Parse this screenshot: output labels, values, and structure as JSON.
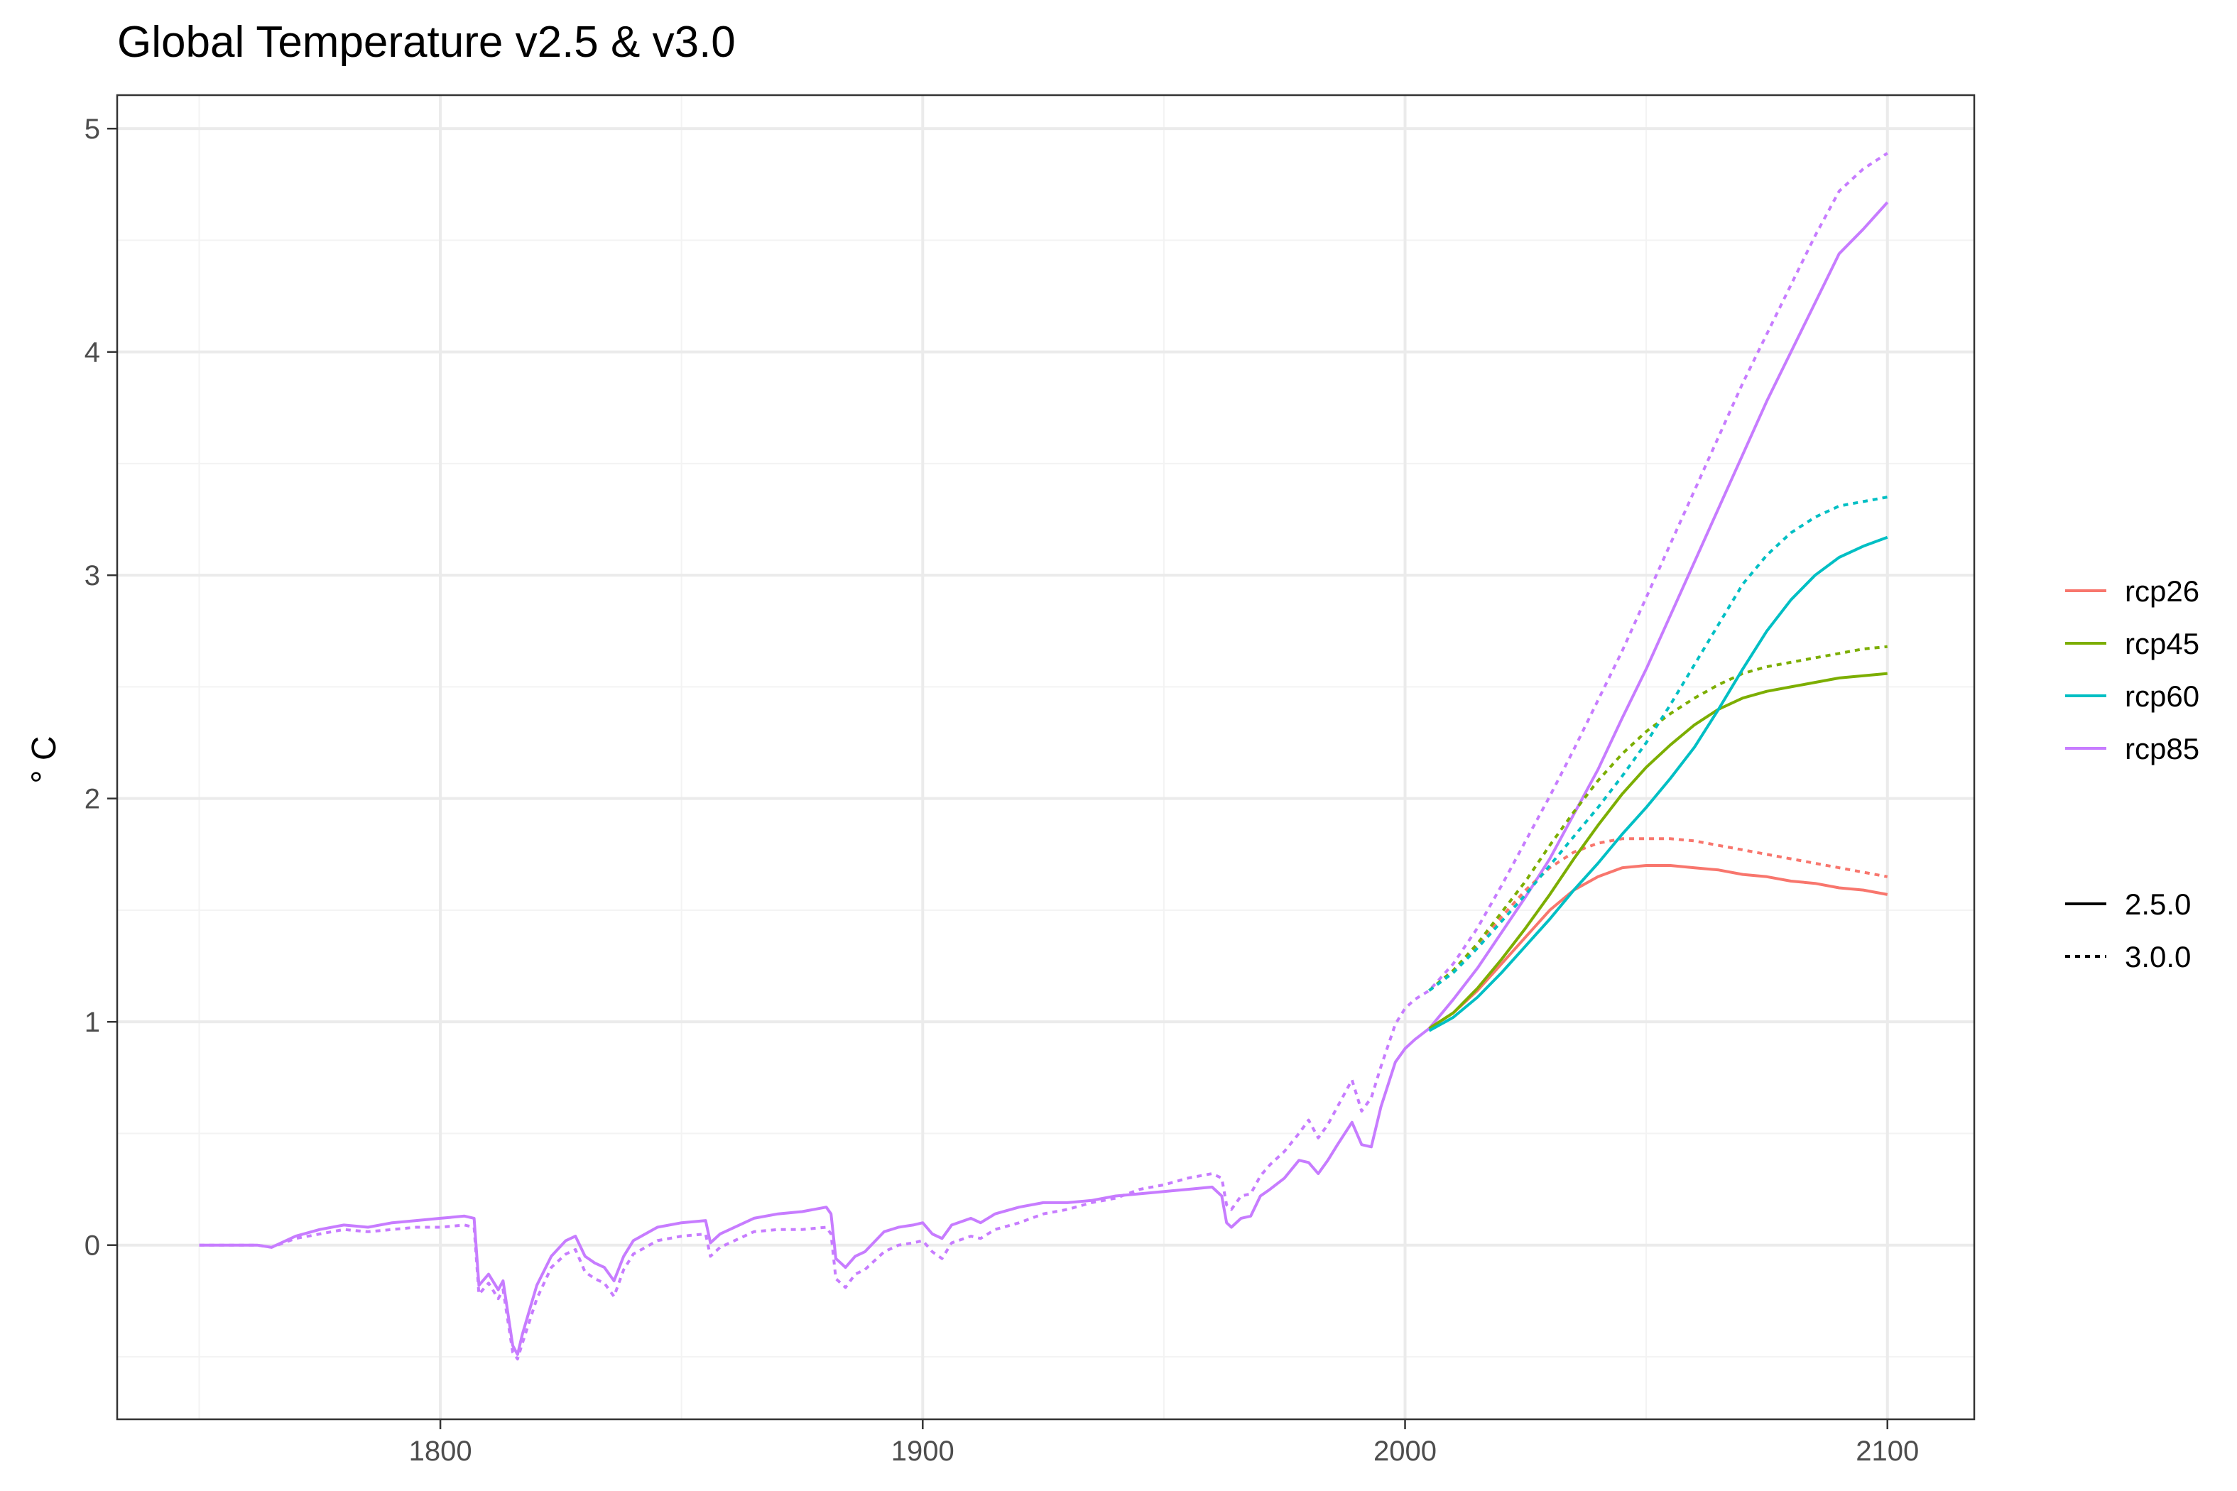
{
  "chart_data": {
    "type": "line",
    "title": "Global Temperature v2.5 & v3.0",
    "xlabel": "",
    "ylabel": "° C",
    "xlim": [
      1733,
      2118
    ],
    "ylim": [
      -0.78,
      5.15
    ],
    "x_ticks": [
      1800,
      1900,
      2000,
      2100
    ],
    "x_tick_labels": [
      "1800",
      "1900",
      "2000",
      "2100"
    ],
    "y_ticks": [
      0,
      1,
      2,
      3,
      4,
      5
    ],
    "y_tick_labels": [
      "0",
      "1",
      "2",
      "3",
      "4",
      "5"
    ],
    "grid": true,
    "legend_position": "right",
    "colors": {
      "rcp26": "#F8766D",
      "rcp45": "#7CAE00",
      "rcp60": "#00BFC4",
      "rcp85": "#C77CFF",
      "panel_border": "#333333",
      "grid_major": "#ebebeb",
      "grid_minor": "#f3f3f3"
    },
    "legend": {
      "scenarios": [
        "rcp26",
        "rcp45",
        "rcp60",
        "rcp85"
      ],
      "versions": [
        {
          "label": "2.5.0",
          "dash": "solid"
        },
        {
          "label": "3.0.0",
          "dash": "dotted"
        }
      ]
    },
    "series": [
      {
        "scenario": "rcp85",
        "version": "2.5.0",
        "x": [
          1750,
          1762,
          1765,
          1770,
          1775,
          1780,
          1785,
          1790,
          1795,
          1800,
          1805,
          1807,
          1808,
          1810,
          1812,
          1813,
          1815,
          1816,
          1817,
          1820,
          1823,
          1826,
          1828,
          1830,
          1832,
          1834,
          1836,
          1838,
          1840,
          1845,
          1850,
          1855,
          1856,
          1858,
          1860,
          1865,
          1870,
          1875,
          1880,
          1881,
          1882,
          1883,
          1884,
          1886,
          1888,
          1892,
          1895,
          1898,
          1900,
          1902,
          1904,
          1906,
          1910,
          1912,
          1915,
          1920,
          1925,
          1930,
          1935,
          1940,
          1945,
          1950,
          1955,
          1960,
          1962,
          1963,
          1964,
          1966,
          1968,
          1970,
          1972,
          1975,
          1978,
          1980,
          1982,
          1984,
          1986,
          1989,
          1991,
          1993,
          1995,
          1998,
          2000,
          2002,
          2005,
          2010,
          2015,
          2020,
          2025,
          2030,
          2035,
          2040,
          2045,
          2050,
          2055,
          2060,
          2065,
          2070,
          2075,
          2080,
          2085,
          2090,
          2095,
          2100
        ],
        "y": [
          0,
          0,
          -0.01,
          0.04,
          0.07,
          0.09,
          0.08,
          0.1,
          0.11,
          0.12,
          0.13,
          0.12,
          -0.18,
          -0.13,
          -0.2,
          -0.16,
          -0.45,
          -0.49,
          -0.4,
          -0.18,
          -0.05,
          0.02,
          0.04,
          -0.05,
          -0.08,
          -0.1,
          -0.16,
          -0.05,
          0.02,
          0.08,
          0.1,
          0.11,
          0.01,
          0.05,
          0.07,
          0.12,
          0.14,
          0.15,
          0.17,
          0.14,
          -0.06,
          -0.08,
          -0.1,
          -0.05,
          -0.03,
          0.06,
          0.08,
          0.09,
          0.1,
          0.05,
          0.03,
          0.09,
          0.12,
          0.1,
          0.14,
          0.17,
          0.19,
          0.19,
          0.2,
          0.22,
          0.23,
          0.24,
          0.25,
          0.26,
          0.22,
          0.1,
          0.08,
          0.12,
          0.13,
          0.22,
          0.25,
          0.3,
          0.38,
          0.37,
          0.32,
          0.38,
          0.45,
          0.55,
          0.45,
          0.44,
          0.62,
          0.82,
          0.88,
          0.92,
          0.97,
          1.1,
          1.24,
          1.4,
          1.56,
          1.73,
          1.93,
          2.13,
          2.36,
          2.58,
          2.82,
          3.06,
          3.3,
          3.54,
          3.78,
          4.0,
          4.22,
          4.44,
          4.55,
          4.67
        ]
      },
      {
        "scenario": "rcp85",
        "version": "3.0.0",
        "x": [
          1750,
          1762,
          1765,
          1770,
          1775,
          1780,
          1785,
          1790,
          1795,
          1800,
          1805,
          1807,
          1808,
          1810,
          1812,
          1813,
          1815,
          1816,
          1817,
          1820,
          1823,
          1826,
          1828,
          1830,
          1832,
          1834,
          1836,
          1838,
          1840,
          1845,
          1850,
          1855,
          1856,
          1858,
          1860,
          1865,
          1870,
          1875,
          1880,
          1881,
          1882,
          1883,
          1884,
          1886,
          1888,
          1892,
          1895,
          1898,
          1900,
          1902,
          1904,
          1906,
          1910,
          1912,
          1915,
          1920,
          1925,
          1930,
          1935,
          1940,
          1945,
          1950,
          1955,
          1960,
          1962,
          1963,
          1964,
          1966,
          1968,
          1970,
          1972,
          1975,
          1978,
          1980,
          1982,
          1984,
          1986,
          1989,
          1991,
          1993,
          1995,
          1998,
          2000,
          2002,
          2005,
          2010,
          2015,
          2020,
          2025,
          2030,
          2035,
          2040,
          2045,
          2050,
          2055,
          2060,
          2065,
          2070,
          2075,
          2080,
          2085,
          2090,
          2095,
          2100
        ],
        "y": [
          0,
          0,
          -0.01,
          0.03,
          0.05,
          0.07,
          0.06,
          0.07,
          0.08,
          0.08,
          0.09,
          0.08,
          -0.22,
          -0.17,
          -0.24,
          -0.2,
          -0.48,
          -0.51,
          -0.44,
          -0.24,
          -0.1,
          -0.04,
          -0.02,
          -0.12,
          -0.15,
          -0.17,
          -0.23,
          -0.11,
          -0.04,
          0.02,
          0.04,
          0.05,
          -0.05,
          -0.01,
          0.01,
          0.06,
          0.07,
          0.07,
          0.08,
          0.05,
          -0.15,
          -0.17,
          -0.19,
          -0.13,
          -0.11,
          -0.03,
          0.0,
          0.01,
          0.02,
          -0.03,
          -0.06,
          0.01,
          0.04,
          0.03,
          0.07,
          0.1,
          0.14,
          0.16,
          0.19,
          0.21,
          0.25,
          0.27,
          0.3,
          0.32,
          0.3,
          0.18,
          0.16,
          0.22,
          0.23,
          0.31,
          0.36,
          0.42,
          0.5,
          0.56,
          0.48,
          0.54,
          0.62,
          0.74,
          0.6,
          0.66,
          0.8,
          0.99,
          1.06,
          1.1,
          1.14,
          1.26,
          1.42,
          1.61,
          1.81,
          2.01,
          2.22,
          2.44,
          2.66,
          2.9,
          3.14,
          3.38,
          3.62,
          3.86,
          4.08,
          4.3,
          4.52,
          4.72,
          4.82,
          4.89
        ]
      },
      {
        "scenario": "rcp26",
        "version": "2.5.0",
        "x": [
          2005,
          2010,
          2015,
          2020,
          2025,
          2030,
          2035,
          2040,
          2045,
          2050,
          2055,
          2060,
          2065,
          2070,
          2075,
          2080,
          2085,
          2090,
          2095,
          2100
        ],
        "y": [
          0.97,
          1.04,
          1.14,
          1.26,
          1.38,
          1.5,
          1.59,
          1.65,
          1.69,
          1.7,
          1.7,
          1.69,
          1.68,
          1.66,
          1.65,
          1.63,
          1.62,
          1.6,
          1.59,
          1.57
        ]
      },
      {
        "scenario": "rcp26",
        "version": "3.0.0",
        "x": [
          2005,
          2010,
          2015,
          2020,
          2025,
          2030,
          2035,
          2040,
          2045,
          2050,
          2055,
          2060,
          2065,
          2070,
          2075,
          2080,
          2085,
          2090,
          2095,
          2100
        ],
        "y": [
          1.14,
          1.23,
          1.34,
          1.47,
          1.59,
          1.69,
          1.76,
          1.8,
          1.82,
          1.82,
          1.82,
          1.81,
          1.79,
          1.77,
          1.75,
          1.73,
          1.71,
          1.69,
          1.67,
          1.65
        ]
      },
      {
        "scenario": "rcp45",
        "version": "2.5.0",
        "x": [
          2005,
          2010,
          2015,
          2020,
          2025,
          2030,
          2035,
          2040,
          2045,
          2050,
          2055,
          2060,
          2065,
          2070,
          2075,
          2080,
          2085,
          2090,
          2095,
          2100
        ],
        "y": [
          0.97,
          1.04,
          1.15,
          1.28,
          1.42,
          1.57,
          1.73,
          1.88,
          2.02,
          2.14,
          2.24,
          2.33,
          2.4,
          2.45,
          2.48,
          2.5,
          2.52,
          2.54,
          2.55,
          2.56
        ]
      },
      {
        "scenario": "rcp45",
        "version": "3.0.0",
        "x": [
          2005,
          2010,
          2015,
          2020,
          2025,
          2030,
          2035,
          2040,
          2045,
          2050,
          2055,
          2060,
          2065,
          2070,
          2075,
          2080,
          2085,
          2090,
          2095,
          2100
        ],
        "y": [
          1.14,
          1.23,
          1.35,
          1.49,
          1.63,
          1.79,
          1.94,
          2.08,
          2.2,
          2.3,
          2.38,
          2.45,
          2.51,
          2.56,
          2.59,
          2.61,
          2.63,
          2.65,
          2.67,
          2.68
        ]
      },
      {
        "scenario": "rcp60",
        "version": "2.5.0",
        "x": [
          2005,
          2010,
          2015,
          2020,
          2025,
          2030,
          2035,
          2040,
          2045,
          2050,
          2055,
          2060,
          2065,
          2070,
          2075,
          2080,
          2085,
          2090,
          2095,
          2100
        ],
        "y": [
          0.96,
          1.02,
          1.11,
          1.22,
          1.34,
          1.46,
          1.59,
          1.71,
          1.84,
          1.96,
          2.09,
          2.23,
          2.4,
          2.58,
          2.75,
          2.89,
          3.0,
          3.08,
          3.13,
          3.17
        ]
      },
      {
        "scenario": "rcp60",
        "version": "3.0.0",
        "x": [
          2005,
          2010,
          2015,
          2020,
          2025,
          2030,
          2035,
          2040,
          2045,
          2050,
          2055,
          2060,
          2065,
          2070,
          2075,
          2080,
          2085,
          2090,
          2095,
          2100
        ],
        "y": [
          1.14,
          1.22,
          1.33,
          1.45,
          1.57,
          1.7,
          1.83,
          1.96,
          2.1,
          2.25,
          2.42,
          2.6,
          2.78,
          2.96,
          3.09,
          3.19,
          3.26,
          3.31,
          3.33,
          3.35
        ]
      }
    ]
  }
}
